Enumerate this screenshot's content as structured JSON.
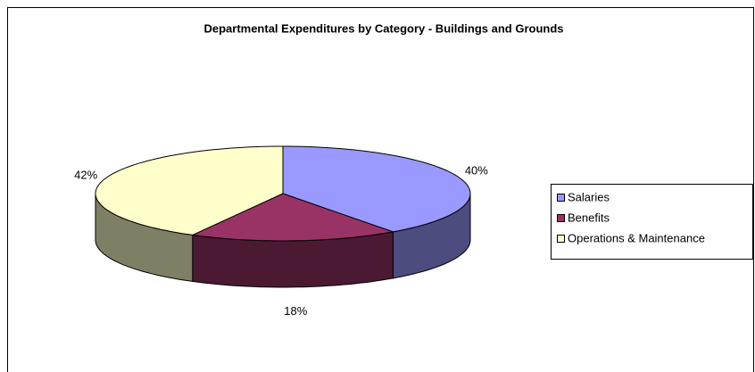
{
  "chart_data": {
    "type": "pie3d",
    "title": "Departmental Expenditures by Category - Buildings and Grounds",
    "categories": [
      "Salaries",
      "Benefits",
      "Operations & Maintenance"
    ],
    "values": [
      40,
      18,
      42
    ],
    "value_labels": [
      "40%",
      "18%",
      "42%"
    ],
    "colors": [
      "#9999ff",
      "#993366",
      "#ffffcc"
    ],
    "legend": "right"
  }
}
